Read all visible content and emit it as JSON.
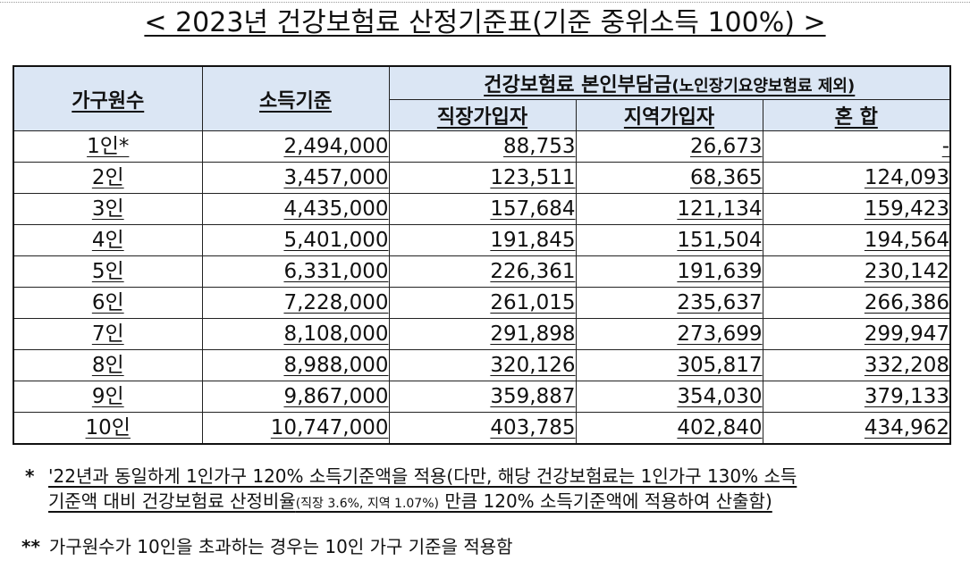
{
  "title": "< 2023년 건강보험료 산정기준표(기준 중위소득 100%) >",
  "header": {
    "household": "가구원수",
    "income": "소득기준",
    "premium_main": "건강보험료 본인부담금",
    "premium_note": "(노인장기요양보험료 제외)",
    "employee": "직장가입자",
    "regional": "지역가입자",
    "mixed": "혼 합"
  },
  "rows": [
    {
      "people": "1인*",
      "income": "2,494,000",
      "employee": "88,753",
      "regional": "26,673",
      "mixed": "-"
    },
    {
      "people": "2인",
      "income": "3,457,000",
      "employee": "123,511",
      "regional": "68,365",
      "mixed": "124,093"
    },
    {
      "people": "3인",
      "income": "4,435,000",
      "employee": "157,684",
      "regional": "121,134",
      "mixed": "159,423"
    },
    {
      "people": "4인",
      "income": "5,401,000",
      "employee": "191,845",
      "regional": "151,504",
      "mixed": "194,564"
    },
    {
      "people": "5인",
      "income": "6,331,000",
      "employee": "226,361",
      "regional": "191,639",
      "mixed": "230,142"
    },
    {
      "people": "6인",
      "income": "7,228,000",
      "employee": "261,015",
      "regional": "235,637",
      "mixed": "266,386"
    },
    {
      "people": "7인",
      "income": "8,108,000",
      "employee": "291,898",
      "regional": "273,699",
      "mixed": "299,947"
    },
    {
      "people": "8인",
      "income": "8,988,000",
      "employee": "320,126",
      "regional": "305,817",
      "mixed": "332,208"
    },
    {
      "people": "9인",
      "income": "9,867,000",
      "employee": "359,887",
      "regional": "354,030",
      "mixed": "379,133"
    },
    {
      "people": "10인",
      "income": "10,747,000",
      "employee": "403,785",
      "regional": "402,840",
      "mixed": "434,962"
    }
  ],
  "notes": {
    "note1_marker": "*",
    "note1_line1": "'22년과 동일하게 1인가구 120% 소득기준액을 적용(다만, 해당 건강보험료는 1인가구 130% 소득",
    "note1_line2a": "기준액 대비 건강보험료 산정비율",
    "note1_line2b": "(직장 3.6%, 지역 1.07%)",
    "note1_line2c": " 만큼 120% 소득기준액에 적용하여 산출함)",
    "note2_marker": "**",
    "note2_text": "가구원수가 10인을 초과하는 경우는 10인 가구 기준을 적용함"
  }
}
